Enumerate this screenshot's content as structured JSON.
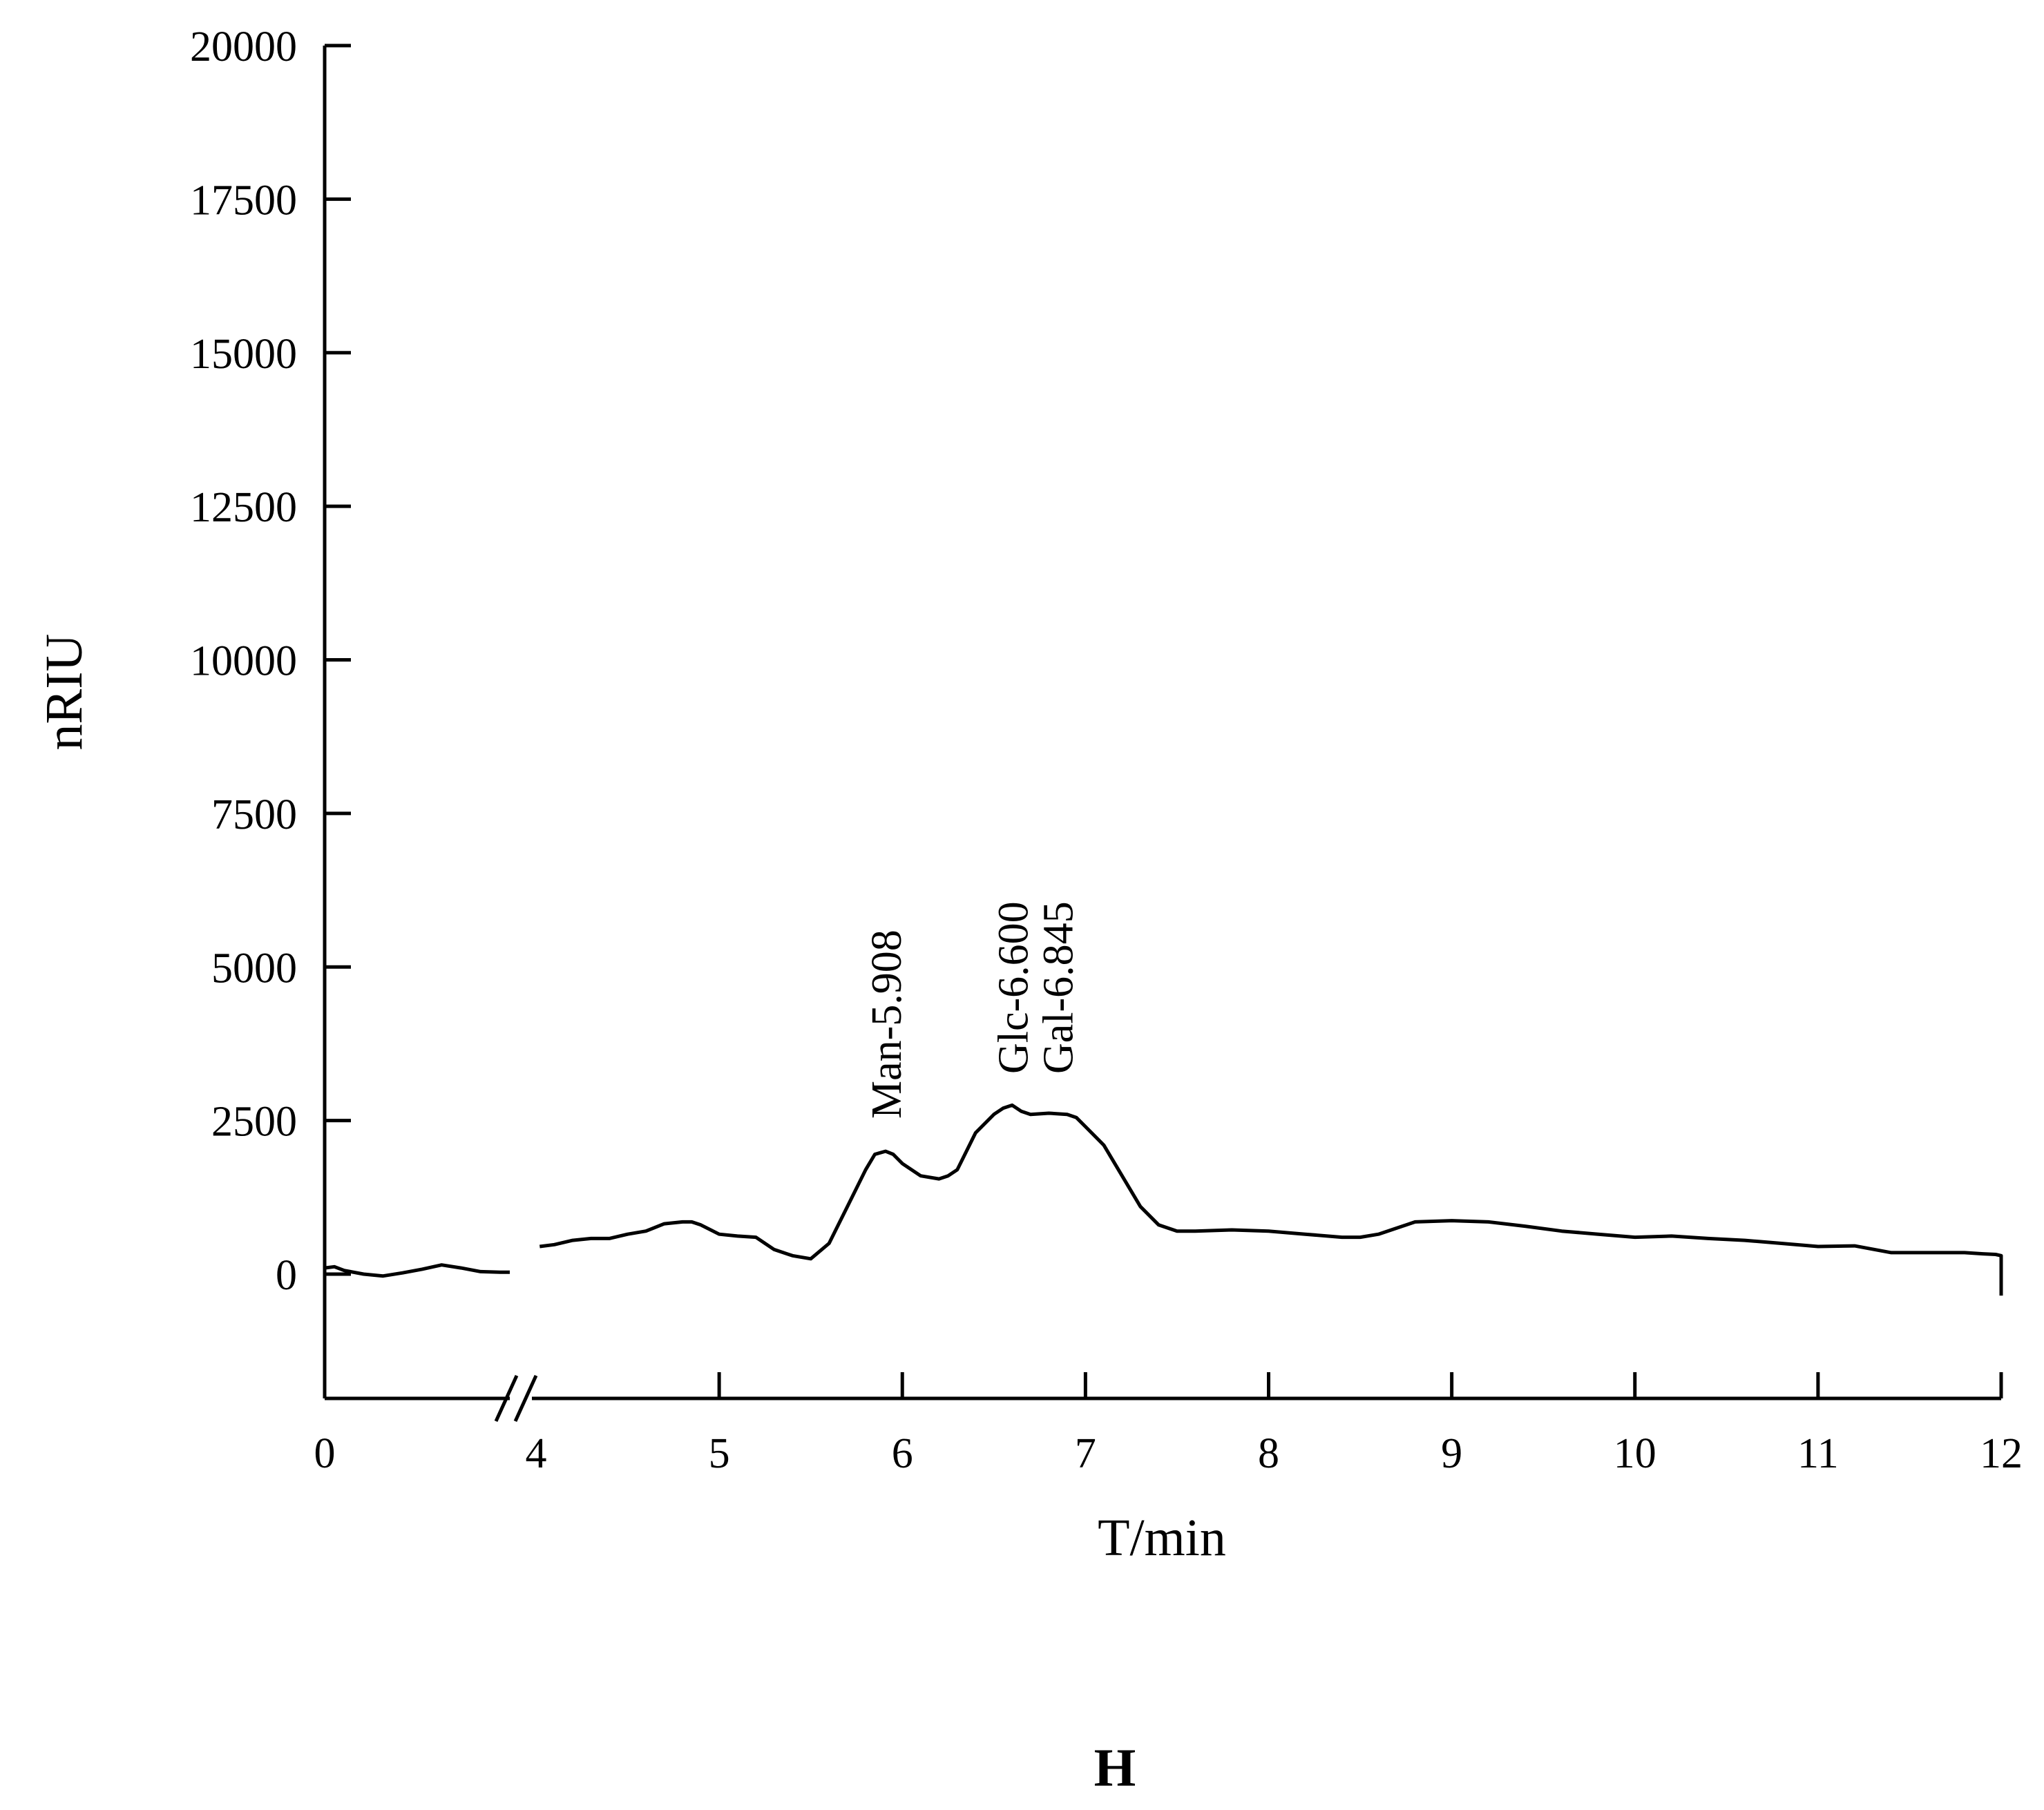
{
  "chart_data": {
    "type": "line",
    "title": "",
    "xlabel": "T/min",
    "ylabel": "nRIU",
    "panel_label": "H",
    "xlim": [
      0,
      12
    ],
    "ylim": [
      -2000,
      20000
    ],
    "axis_break": {
      "after": 0,
      "resume": 4
    },
    "x_ticks": [
      {
        "value": 0,
        "label": "0"
      },
      {
        "value": 4,
        "label": "4"
      },
      {
        "value": 5,
        "label": "5"
      },
      {
        "value": 6,
        "label": "6"
      },
      {
        "value": 7,
        "label": "7"
      },
      {
        "value": 8,
        "label": "8"
      },
      {
        "value": 9,
        "label": "9"
      },
      {
        "value": 10,
        "label": "10"
      },
      {
        "value": 11,
        "label": "11"
      },
      {
        "value": 12,
        "label": "12"
      }
    ],
    "y_ticks": [
      {
        "value": 0,
        "label": "0"
      },
      {
        "value": 2500,
        "label": "2500"
      },
      {
        "value": 5000,
        "label": "5000"
      },
      {
        "value": 7500,
        "label": "7500"
      },
      {
        "value": 10000,
        "label": "10000"
      },
      {
        "value": 12500,
        "label": "12500"
      },
      {
        "value": 15000,
        "label": "15000"
      },
      {
        "value": 17500,
        "label": "17500"
      },
      {
        "value": 20000,
        "label": "20000"
      }
    ],
    "peaks": [
      {
        "label": "Man-5.908",
        "x": 5.908,
        "y": 2000
      },
      {
        "label": "Glc-6.600",
        "x": 6.6,
        "y": 2750
      },
      {
        "label": "Gal-6.845",
        "x": 6.845,
        "y": 2600
      }
    ],
    "series": [
      {
        "color": "#000000",
        "segments": [
          {
            "x": [
              0.0,
              0.05,
              0.1,
              0.2,
              0.3,
              0.4,
              0.5,
              0.6,
              0.7,
              0.8,
              0.9,
              0.95
            ],
            "y": [
              100,
              120,
              60,
              0,
              -30,
              20,
              80,
              150,
              100,
              40,
              30,
              30
            ]
          },
          {
            "x": [
              4.02,
              4.1,
              4.2,
              4.3,
              4.4,
              4.5,
              4.6,
              4.7,
              4.8,
              4.85,
              4.9,
              5.0,
              5.1,
              5.2,
              5.3,
              5.4,
              5.5,
              5.6,
              5.7,
              5.8,
              5.85,
              5.908,
              5.95,
              6.0,
              6.1,
              6.2,
              6.25,
              6.3,
              6.4,
              6.5,
              6.55,
              6.6,
              6.65,
              6.7,
              6.8,
              6.9,
              6.95,
              7.0,
              7.1,
              7.2,
              7.3,
              7.4,
              7.5,
              7.6,
              7.8,
              8.0,
              8.2,
              8.4,
              8.5,
              8.6,
              8.8,
              9.0,
              9.2,
              9.4,
              9.6,
              9.8,
              10.0,
              10.2,
              10.4,
              10.6,
              10.8,
              11.0,
              11.2,
              11.4,
              11.6,
              11.8,
              11.9,
              11.97,
              12.0,
              12.0
            ],
            "y": [
              450,
              480,
              550,
              580,
              580,
              650,
              700,
              820,
              850,
              850,
              800,
              650,
              620,
              600,
              400,
              300,
              250,
              500,
              1100,
              1700,
              1950,
              2000,
              1950,
              1800,
              1600,
              1550,
              1600,
              1700,
              2300,
              2600,
              2700,
              2750,
              2650,
              2600,
              2620,
              2600,
              2550,
              2400,
              2100,
              1600,
              1100,
              800,
              700,
              700,
              720,
              700,
              650,
              600,
              600,
              650,
              850,
              870,
              850,
              780,
              700,
              650,
              600,
              620,
              580,
              550,
              500,
              450,
              460,
              350,
              350,
              350,
              330,
              320,
              300,
              -350
            ]
          }
        ]
      }
    ]
  }
}
